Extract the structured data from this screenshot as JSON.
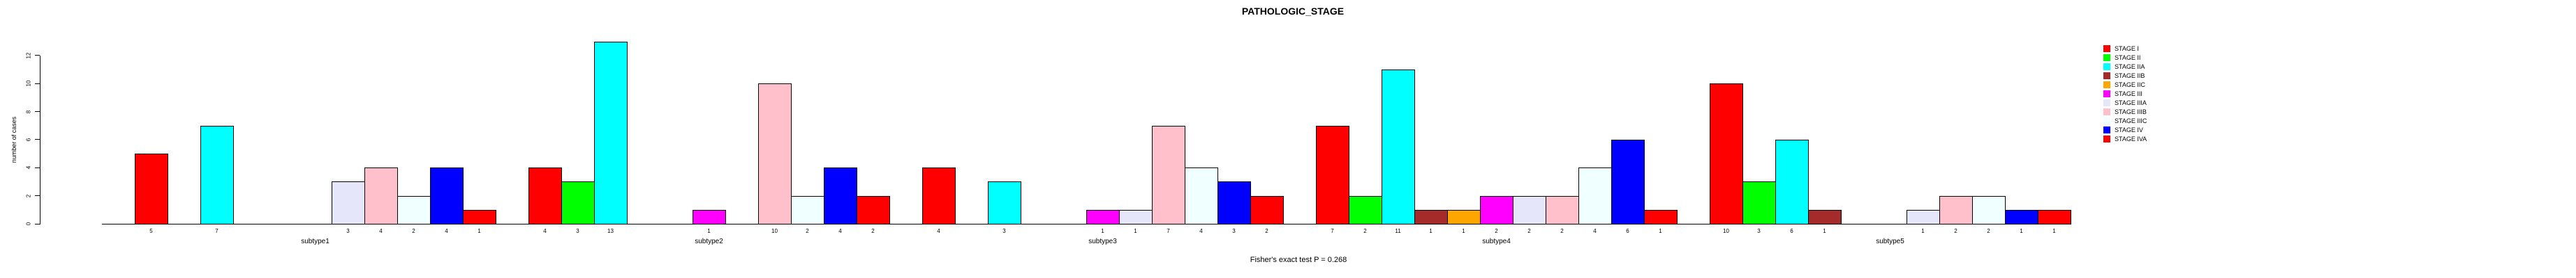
{
  "chart_data": {
    "type": "bar",
    "title": "PATHOLOGIC_STAGE",
    "xlabel": "",
    "ylabel": "number of cases",
    "ylim": [
      0,
      13
    ],
    "yticks": [
      0,
      2,
      4,
      6,
      8,
      10,
      12
    ],
    "grid": false,
    "legend_position": "right",
    "bar_value_labels_shown": true,
    "categories": [
      "subtype1",
      "subtype2",
      "subtype3",
      "subtype4",
      "subtype5"
    ],
    "series": [
      {
        "name": "STAGE I",
        "color": "#FF0000",
        "values": [
          5,
          4,
          4,
          7,
          10
        ]
      },
      {
        "name": "STAGE II",
        "color": "#00FF00",
        "values": [
          0,
          3,
          0,
          2,
          3
        ]
      },
      {
        "name": "STAGE IIA",
        "color": "#00FFFF",
        "values": [
          7,
          13,
          3,
          11,
          6
        ]
      },
      {
        "name": "STAGE IIB",
        "color": "#A52A2A",
        "values": [
          0,
          0,
          0,
          1,
          1
        ]
      },
      {
        "name": "STAGE IIC",
        "color": "#FFA500",
        "values": [
          0,
          0,
          0,
          1,
          0
        ]
      },
      {
        "name": "STAGE III",
        "color": "#FF00FF",
        "values": [
          0,
          1,
          1,
          2,
          0
        ]
      },
      {
        "name": "STAGE IIIA",
        "color": "#E6E6FA",
        "values": [
          3,
          0,
          1,
          2,
          1
        ]
      },
      {
        "name": "STAGE IIIB",
        "color": "#FFC0CB",
        "values": [
          4,
          10,
          7,
          2,
          2
        ]
      },
      {
        "name": "STAGE IIIC",
        "color": "#F0FFFF",
        "values": [
          2,
          2,
          4,
          4,
          2
        ]
      },
      {
        "name": "STAGE IV",
        "color": "#0000FF",
        "values": [
          4,
          4,
          3,
          6,
          1
        ]
      },
      {
        "name": "STAGE IVA",
        "color": "#FF0000",
        "values": [
          1,
          2,
          2,
          1,
          1
        ]
      }
    ],
    "caption": "Fisher's exact test P = 0.268"
  },
  "legend": {
    "entries": [
      {
        "label": "STAGE I",
        "color": "#FF0000"
      },
      {
        "label": "STAGE II",
        "color": "#00FF00"
      },
      {
        "label": "STAGE IIA",
        "color": "#00FFFF"
      },
      {
        "label": "STAGE IIB",
        "color": "#A52A2A"
      },
      {
        "label": "STAGE IIC",
        "color": "#FFA500"
      },
      {
        "label": "STAGE III",
        "color": "#FF00FF"
      },
      {
        "label": "STAGE IIIA",
        "color": "#E6E6FA"
      },
      {
        "label": "STAGE IIIB",
        "color": "#FFC0CB"
      },
      {
        "label": "STAGE IIIC",
        "color": "#F0FFFF"
      },
      {
        "label": "STAGE IV",
        "color": "#0000FF"
      },
      {
        "label": "STAGE IVA",
        "color": "#FF0000"
      }
    ]
  }
}
